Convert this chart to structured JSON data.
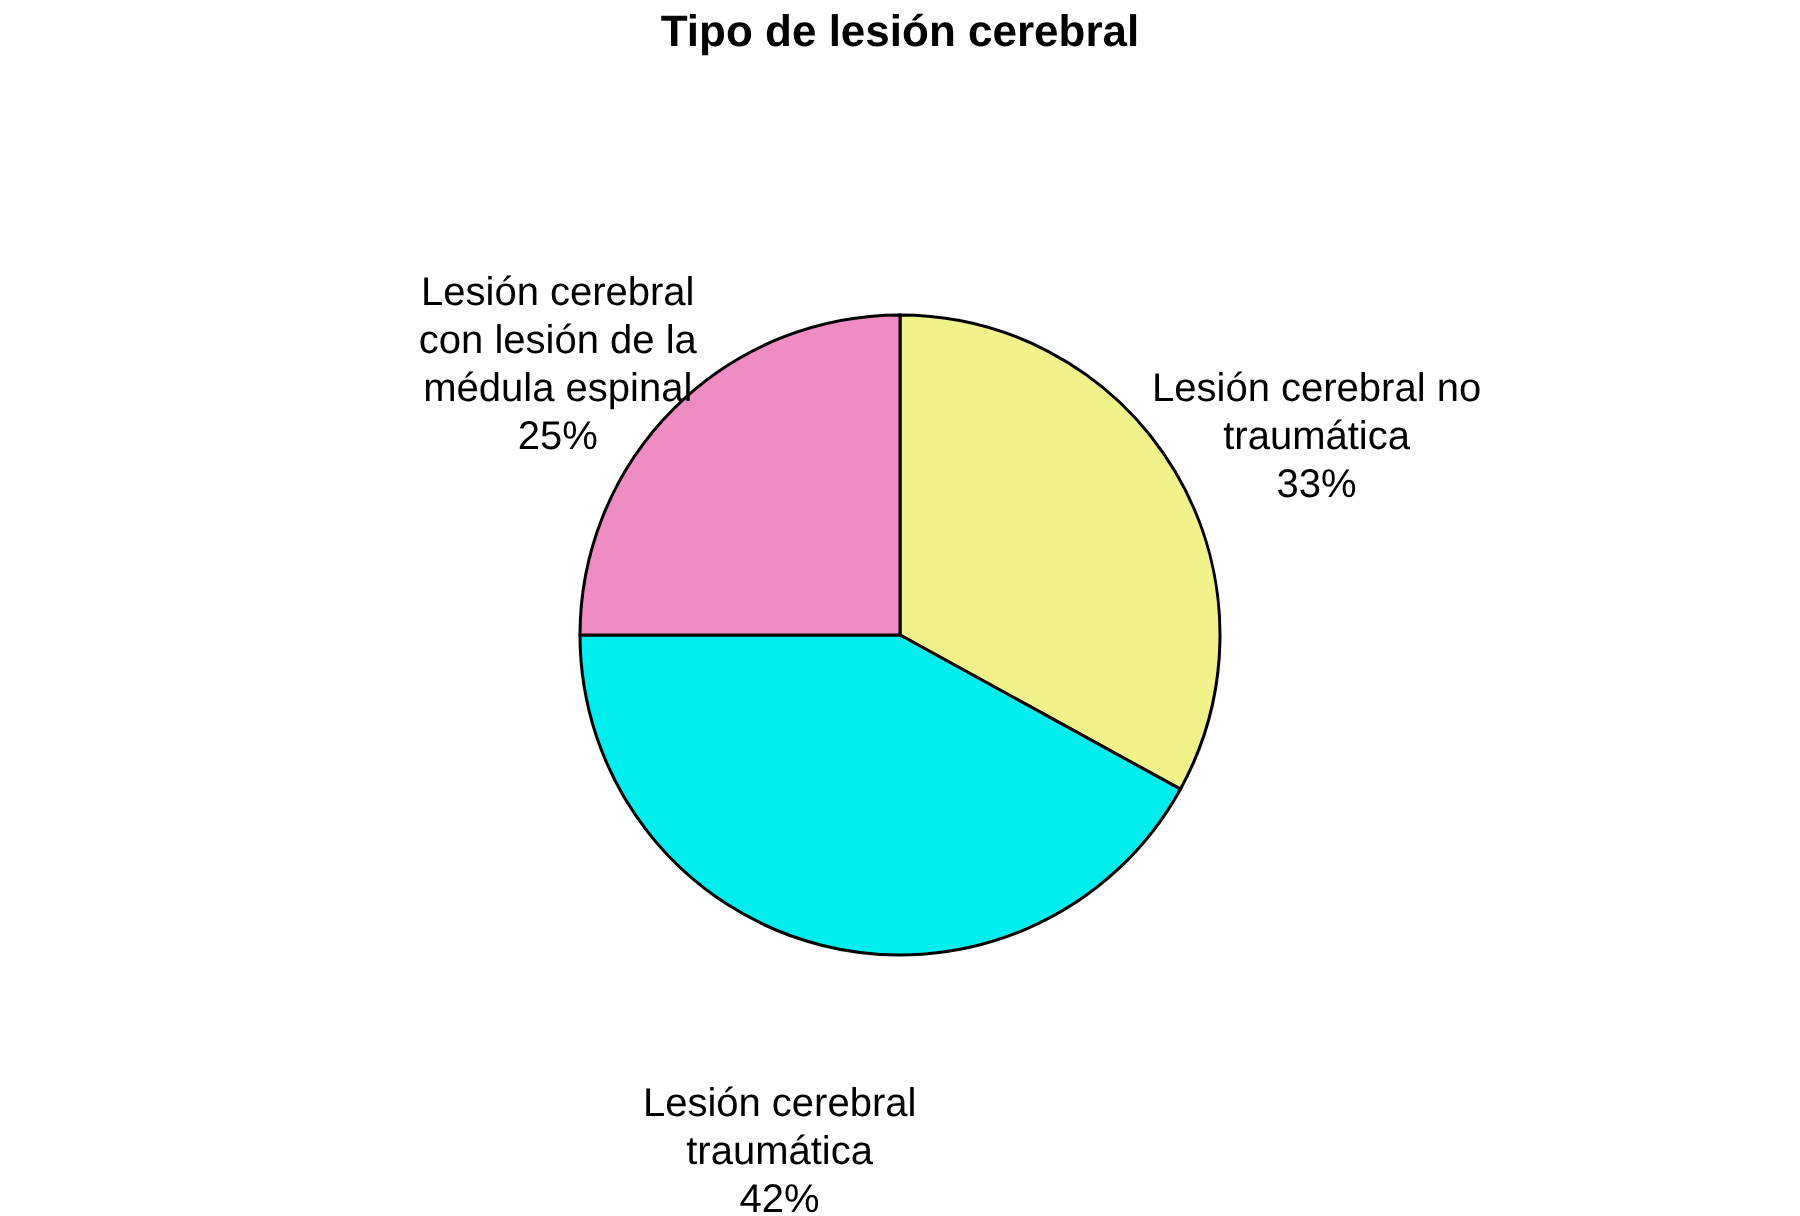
{
  "chart_data": {
    "type": "pie",
    "title": "Tipo de lesión cerebral",
    "categories": [
      "Lesión cerebral no traumática",
      "Lesión cerebral traumática",
      "Lesión cerebral con lesión de la médula espinal"
    ],
    "values": [
      33,
      42,
      25
    ],
    "value_labels": [
      "33%",
      "42%",
      "25%"
    ],
    "colors": [
      "#f2f28a",
      "#00eded",
      "#f08cc4"
    ],
    "legend": false
  }
}
